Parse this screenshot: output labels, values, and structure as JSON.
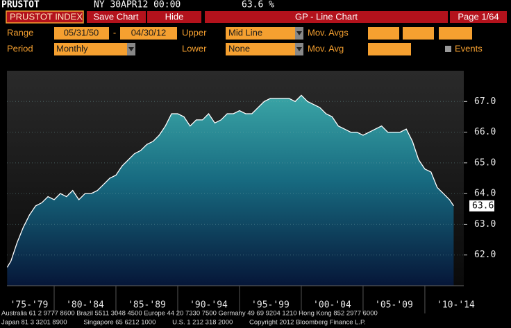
{
  "header": {
    "ticker": "PRUSTOT",
    "time": "NY 30APR12 00:00",
    "last": "63.6 %"
  },
  "toolbar": {
    "security": "PRUSTOT INDEX",
    "buttons": [
      "Save Chart",
      "Hide"
    ],
    "function": "GP - Line Chart",
    "page": "Page 1/64"
  },
  "settings": {
    "range_label": "Range",
    "start": "05/31/50",
    "dash": "-",
    "end": "04/30/12",
    "upper_label": "Upper",
    "upper": "Mid Line",
    "mov_avgs_label": "Mov. Avgs",
    "period_label": "Period",
    "period": "Monthly",
    "lower_label": "Lower",
    "lower": "None",
    "mov_avg_label": "Mov. Avg",
    "events_label": "Events"
  },
  "chart_data": {
    "type": "area",
    "x": [
      1976.2,
      1976.5,
      1977.0,
      1977.5,
      1978.0,
      1978.5,
      1979.0,
      1979.5,
      1980.0,
      1980.5,
      1981.0,
      1981.5,
      1982.0,
      1982.5,
      1983.0,
      1983.5,
      1984.0,
      1984.5,
      1985.0,
      1985.5,
      1986.0,
      1986.5,
      1987.0,
      1987.5,
      1988.0,
      1988.5,
      1989.0,
      1989.5,
      1990.0,
      1990.5,
      1991.0,
      1991.5,
      1992.0,
      1992.5,
      1993.0,
      1993.5,
      1994.0,
      1994.5,
      1995.0,
      1995.5,
      1996.0,
      1996.5,
      1997.0,
      1997.5,
      1998.0,
      1998.5,
      1999.0,
      1999.5,
      2000.0,
      2000.5,
      2001.0,
      2001.5,
      2002.0,
      2002.5,
      2003.0,
      2003.5,
      2004.0,
      2004.5,
      2005.0,
      2005.5,
      2006.0,
      2006.5,
      2007.0,
      2007.5,
      2008.0,
      2008.5,
      2009.0,
      2009.5,
      2010.0,
      2010.5,
      2011.0,
      2011.5,
      2012.0,
      2012.33
    ],
    "series": [
      {
        "color": "#ffffff",
        "values": [
          61.6,
          61.8,
          62.4,
          62.9,
          63.3,
          63.6,
          63.7,
          63.9,
          63.8,
          64.0,
          63.9,
          64.1,
          63.8,
          64.0,
          64.0,
          64.1,
          64.3,
          64.5,
          64.6,
          64.9,
          65.1,
          65.3,
          65.4,
          65.6,
          65.7,
          65.9,
          66.2,
          66.6,
          66.6,
          66.5,
          66.2,
          66.4,
          66.4,
          66.6,
          66.3,
          66.4,
          66.6,
          66.6,
          66.7,
          66.6,
          66.6,
          66.8,
          67.0,
          67.1,
          67.1,
          67.1,
          67.1,
          67.0,
          67.2,
          67.0,
          66.9,
          66.8,
          66.6,
          66.5,
          66.2,
          66.1,
          66.0,
          66.0,
          65.9,
          66.0,
          66.1,
          66.2,
          66.0,
          66.0,
          66.0,
          66.1,
          65.7,
          65.1,
          64.8,
          64.7,
          64.2,
          64.0,
          63.8,
          63.6
        ]
      }
    ],
    "xlim": [
      1976.18,
      2013.15
    ],
    "xticks": [
      {
        "value": 1977.5,
        "label": "'75-'79"
      },
      {
        "value": 1982.5,
        "label": "'80-'84"
      },
      {
        "value": 1987.5,
        "label": "'85-'89"
      },
      {
        "value": 1992.5,
        "label": "'90-'94"
      },
      {
        "value": 1997.5,
        "label": "'95-'99"
      },
      {
        "value": 2002.5,
        "label": "'00-'04"
      },
      {
        "value": 2007.5,
        "label": "'05-'09"
      },
      {
        "value": 2012.5,
        "label": "'10-'14"
      }
    ],
    "ylim": [
      61,
      68
    ],
    "yticks": [
      {
        "value": 62,
        "label": "62.0"
      },
      {
        "value": 63,
        "label": "63.0"
      },
      {
        "value": 64,
        "label": "64.0"
      },
      {
        "value": 65,
        "label": "65.0"
      },
      {
        "value": 66,
        "label": "66.0"
      },
      {
        "value": 67,
        "label": "67.0"
      }
    ],
    "grid": true
  },
  "footer": [
    "Australia 61 2 9777 8600 Brazil 5511 3048 4500 Europe 44 20 7330 7500 Germany 49 69 9204 1210 Hong Kong 852 2977 6000",
    "Japan 81 3 3201 8900         Singapore 65 6212 1000         U.S. 1 212 318 2000         Copyright 2012 Bloomberg Finance L.P."
  ]
}
